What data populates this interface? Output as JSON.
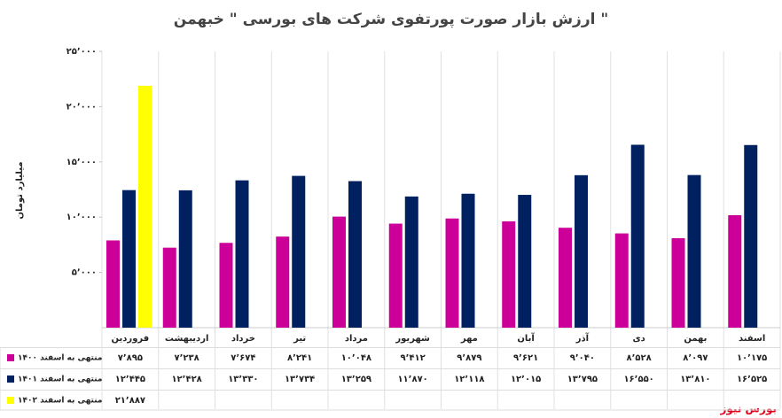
{
  "chart_data": {
    "type": "bar",
    "title": "ارزش بازار صورت پورتفوی شرکت های بورسی \" خبهمن \"",
    "y_label": "میلیارد تومان",
    "source": "بورس نیوز",
    "categories": [
      "فروردین",
      "اردیبهشت",
      "خرداد",
      "تیر",
      "مرداد",
      "شهریور",
      "مهر",
      "آبان",
      "آذر",
      "دی",
      "بهمن",
      "اسفند"
    ],
    "series": [
      {
        "name": "منتهی به اسفند ۱۴۰۰",
        "color": "#cc0099",
        "values": [
          7895,
          7238,
          7674,
          8241,
          10048,
          9412,
          9879,
          9621,
          9040,
          8528,
          8097,
          10175
        ],
        "value_labels": [
          "۷٬۸۹۵",
          "۷٬۲۳۸",
          "۷٬۶۷۴",
          "۸٬۲۴۱",
          "۱۰٬۰۴۸",
          "۹٬۴۱۲",
          "۹٬۸۷۹",
          "۹٬۶۲۱",
          "۹٬۰۴۰",
          "۸٬۵۲۸",
          "۸٬۰۹۷",
          "۱۰٬۱۷۵"
        ]
      },
      {
        "name": "منتهی به اسفند ۱۴۰۱",
        "color": "#002060",
        "values": [
          12445,
          12428,
          13330,
          13734,
          13259,
          11870,
          12118,
          12015,
          13795,
          16550,
          13810,
          16525
        ],
        "value_labels": [
          "۱۲٬۴۴۵",
          "۱۲٬۴۲۸",
          "۱۳٬۳۳۰",
          "۱۳٬۷۳۴",
          "۱۳٬۲۵۹",
          "۱۱٬۸۷۰",
          "۱۲٬۱۱۸",
          "۱۲٬۰۱۵",
          "۱۳٬۷۹۵",
          "۱۶٬۵۵۰",
          "۱۳٬۸۱۰",
          "۱۶٬۵۲۵"
        ]
      },
      {
        "name": "منتهی به اسفند ۱۴۰۲",
        "color": "#ffff00",
        "values": [
          21887,
          null,
          null,
          null,
          null,
          null,
          null,
          null,
          null,
          null,
          null,
          null
        ],
        "value_labels": [
          "۲۱٬۸۸۷",
          null,
          null,
          null,
          null,
          null,
          null,
          null,
          null,
          null,
          null,
          null
        ]
      }
    ],
    "ylim": [
      0,
      25000
    ],
    "yticks": [
      {
        "value": 5000,
        "label": "۵٬۰۰۰"
      },
      {
        "value": 10000,
        "label": "۱۰٬۰۰۰"
      },
      {
        "value": 15000,
        "label": "۱۵٬۰۰۰"
      },
      {
        "value": 20000,
        "label": "۲۰٬۰۰۰"
      },
      {
        "value": 25000,
        "label": "۲۵٬۰۰۰"
      }
    ]
  }
}
